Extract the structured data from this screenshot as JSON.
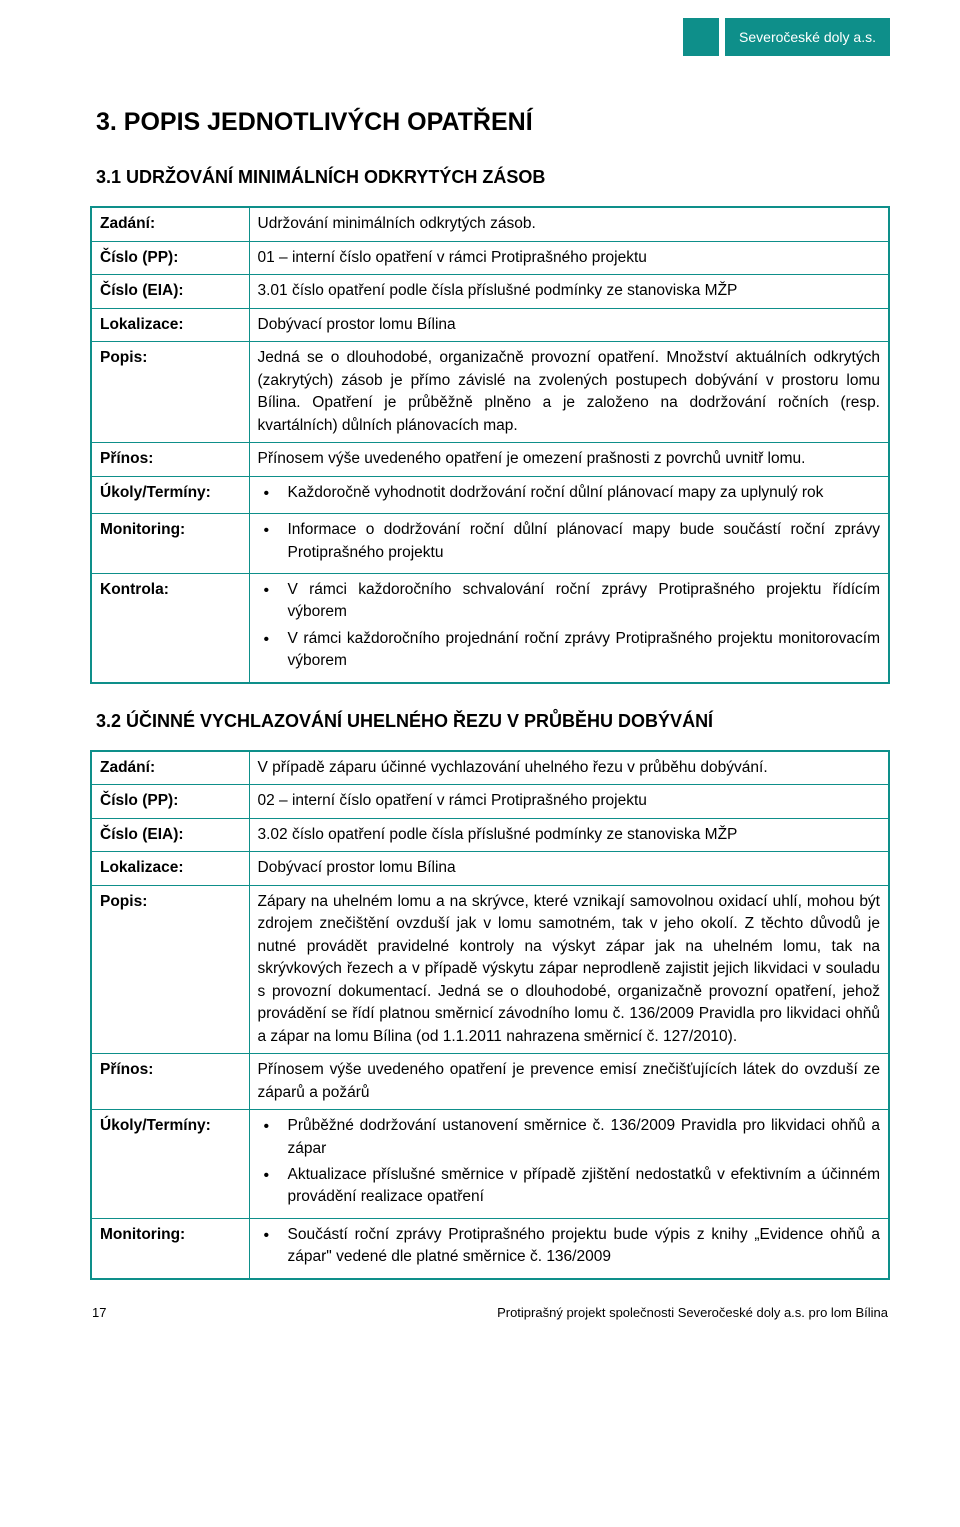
{
  "header": {
    "company": "Severočeské doly a.s."
  },
  "section": {
    "title": "3.   POPIS JEDNOTLIVÝCH OPATŘENÍ"
  },
  "m1": {
    "heading": "3.1  UDRŽOVÁNÍ MINIMÁLNÍCH ODKRYTÝCH ZÁSOB",
    "labels": {
      "zadani": "Zadání:",
      "cislo_pp": "Číslo (PP):",
      "cislo_eia": "Číslo (EIA):",
      "lokalizace": "Lokalizace:",
      "popis": "Popis:",
      "prinos": "Přínos:",
      "ukoly": "Úkoly/Termíny:",
      "monitoring": "Monitoring:",
      "kontrola": "Kontrola:"
    },
    "zadani": "Udržování minimálních odkrytých zásob.",
    "cislo_pp": "01 – interní číslo opatření v rámci Protiprašného projektu",
    "cislo_eia": "3.01 číslo opatření podle čísla příslušné podmínky ze stanoviska MŽP",
    "lokalizace": "Dobývací prostor lomu Bílina",
    "popis": "Jedná se o dlouhodobé, organizačně provozní opatření. Množství aktuálních odkrytých (zakrytých) zásob je přímo závislé na zvolených postupech dobývání v prostoru lomu Bílina. Opatření je průběžně plněno a je založeno na dodržování ročních (resp. kvartálních) důlních plánovacích map.",
    "prinos": "Přínosem výše uvedeného opatření je omezení prašnosti z povrchů uvnitř lomu.",
    "ukoly": [
      "Každoročně vyhodnotit dodržování roční důlní plánovací mapy za uplynulý rok"
    ],
    "monitoring": [
      "Informace o dodržování roční důlní plánovací mapy bude součástí roční zprávy Protiprašného projektu"
    ],
    "kontrola": [
      "V rámci každoročního schvalování roční zprávy Protiprašného projektu řídícím výborem",
      "V rámci každoročního projednání roční zprávy Protiprašného projektu monitorovacím výborem"
    ]
  },
  "m2": {
    "heading": "3.2  ÚČINNÉ VYCHLAZOVÁNÍ UHELNÉHO ŘEZU V PRŮBĚHU DOBÝVÁNÍ",
    "labels": {
      "zadani": "Zadání:",
      "cislo_pp": "Číslo (PP):",
      "cislo_eia": "Číslo (EIA):",
      "lokalizace": "Lokalizace:",
      "popis": "Popis:",
      "prinos": "Přínos:",
      "ukoly": "Úkoly/Termíny:",
      "monitoring": "Monitoring:"
    },
    "zadani": "V případě záparu účinné vychlazování uhelného řezu v průběhu dobývání.",
    "cislo_pp": "02 – interní číslo opatření v rámci Protiprašného projektu",
    "cislo_eia": "3.02 číslo opatření podle čísla příslušné podmínky ze stanoviska MŽP",
    "lokalizace": "Dobývací prostor lomu Bílina",
    "popis": "Zápary na uhelném lomu a na skrývce, které vznikají samovolnou oxidací uhlí, mohou být zdrojem znečištění ovzduší jak v lomu samotném, tak v jeho okolí. Z těchto důvodů je nutné provádět pravidelné kontroly na výskyt zápar jak na uhelném lomu, tak na skrývkových řezech a v případě výskytu zápar neprodleně zajistit jejich likvidaci v souladu s provozní dokumentací. Jedná se o dlouhodobé, organizačně provozní opatření, jehož provádění se řídí platnou směrnicí závodního lomu č. 136/2009 Pravidla pro likvidaci ohňů a zápar na lomu Bílina (od 1.1.2011 nahrazena směrnicí č. 127/2010).",
    "prinos": "Přínosem výše uvedeného opatření je prevence emisí znečišťujících látek do ovzduší ze záparů a požárů",
    "ukoly": [
      "Průběžné dodržování ustanovení směrnice č. 136/2009 Pravidla pro likvidaci ohňů a zápar",
      "Aktualizace příslušné směrnice v případě zjištění nedostatků v efektivním a účinném provádění realizace opatření"
    ],
    "monitoring": [
      "Součástí roční zprávy Protiprašného projektu bude výpis z knihy „Evidence ohňů a zápar\" vedené dle platné směrnice č. 136/2009"
    ]
  },
  "footer": {
    "page": "17",
    "title": "Protiprašný projekt společnosti Severočeské doly a.s. pro lom Bílina"
  },
  "colors": {
    "accent": "#0e8f8a",
    "text": "#000000",
    "bg": "#ffffff",
    "header_text": "#ffffff"
  }
}
